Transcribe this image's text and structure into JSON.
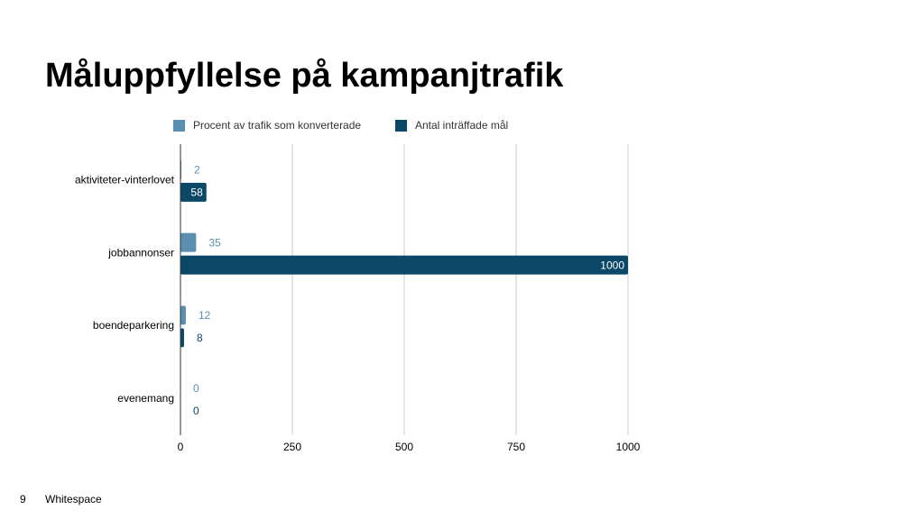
{
  "chart_data": {
    "type": "bar",
    "orientation": "horizontal",
    "title": "Måluppfyllelse på kampanjtrafik",
    "categories": [
      "aktiviteter-vinterlovet",
      "jobbannonser",
      "boendeparkering",
      "evenemang"
    ],
    "series": [
      {
        "name": "Procent av trafik som konverterade",
        "color": "#5b8fb1",
        "values": [
          2,
          35,
          12,
          0
        ]
      },
      {
        "name": "Antal inträffade mål",
        "color": "#0b4766",
        "values": [
          58,
          1000,
          8,
          0
        ]
      }
    ],
    "xlim": [
      0,
      1000
    ],
    "xticks": [
      0,
      250,
      500,
      750,
      1000
    ],
    "grid": true,
    "legend": "top"
  },
  "footer": {
    "page": "9",
    "brand": "Whitespace"
  }
}
